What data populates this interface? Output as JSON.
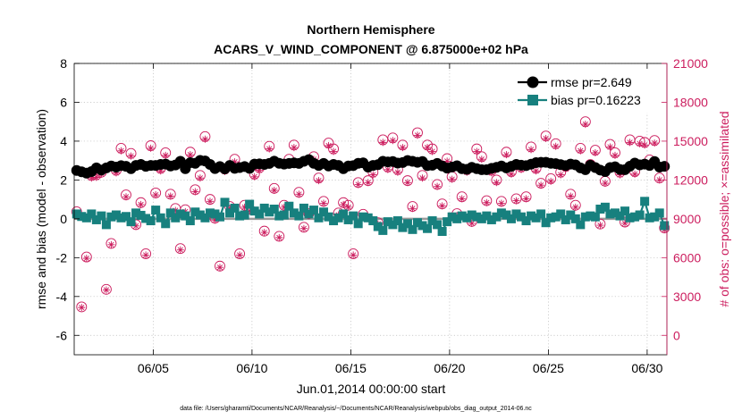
{
  "chart_data": {
    "type": "scatter",
    "title": "Northern Hemisphere",
    "subtitle": "ACARS_V_WIND_COMPONENT @ 6.875000e+02 hPa",
    "xlabel": "Jun.01,2014 00:00:00 start",
    "ylabel": "rmse and bias (model - observation)",
    "y2label": "# of obs: o=possible; ×=assimilated",
    "footnote": "data file: /Users/gharamti/Documents/NCAR/Reanalysis/~/Documents/NCAR/Reanalysis/webpub/obs_diag_output_2014-06.nc",
    "xlim": [
      1.0,
      31.0
    ],
    "ylim": [
      -7,
      8
    ],
    "y2lim": [
      -1500,
      21000
    ],
    "x_ticks": [
      5,
      10,
      15,
      20,
      25,
      30
    ],
    "x_tick_labels": [
      "06/05",
      "06/10",
      "06/15",
      "06/20",
      "06/25",
      "06/30"
    ],
    "y_ticks": [
      -6,
      -4,
      -2,
      0,
      2,
      4,
      6,
      8
    ],
    "y_tick_labels": [
      "-6",
      "-4",
      "-2",
      "0",
      "2",
      "4",
      "6",
      "8"
    ],
    "y2_ticks": [
      0,
      3000,
      6000,
      9000,
      12000,
      15000,
      18000,
      21000
    ],
    "y2_tick_labels": [
      "0",
      "3000",
      "6000",
      "9000",
      "12000",
      "15000",
      "18000",
      "21000"
    ],
    "grid": true,
    "legend_position": "top-right",
    "zero_line": 0,
    "series": [
      {
        "name": "rmse pr=2.649",
        "axis": "left",
        "color": "#000000",
        "marker": "circle",
        "x": [
          1.125,
          1.375,
          1.625,
          1.875,
          2.125,
          2.375,
          2.625,
          2.875,
          3.125,
          3.375,
          3.625,
          3.875,
          4.125,
          4.375,
          4.625,
          4.875,
          5.125,
          5.375,
          5.625,
          5.875,
          6.125,
          6.375,
          6.625,
          6.875,
          7.125,
          7.375,
          7.625,
          7.875,
          8.125,
          8.375,
          8.625,
          8.875,
          9.125,
          9.375,
          9.625,
          9.875,
          10.125,
          10.375,
          10.625,
          10.875,
          11.125,
          11.375,
          11.625,
          11.875,
          12.125,
          12.375,
          12.625,
          12.875,
          13.125,
          13.375,
          13.625,
          13.875,
          14.125,
          14.375,
          14.625,
          14.875,
          15.125,
          15.375,
          15.625,
          15.875,
          16.125,
          16.375,
          16.625,
          16.875,
          17.125,
          17.375,
          17.625,
          17.875,
          18.125,
          18.375,
          18.625,
          18.875,
          19.125,
          19.375,
          19.625,
          19.875,
          20.125,
          20.375,
          20.625,
          20.875,
          21.125,
          21.375,
          21.625,
          21.875,
          22.125,
          22.375,
          22.625,
          22.875,
          23.125,
          23.375,
          23.625,
          23.875,
          24.125,
          24.375,
          24.625,
          24.875,
          25.125,
          25.375,
          25.625,
          25.875,
          26.125,
          26.375,
          26.625,
          26.875,
          27.125,
          27.375,
          27.625,
          27.875,
          28.125,
          28.375,
          28.625,
          28.875,
          29.125,
          29.375,
          29.625,
          29.875,
          30.125,
          30.375,
          30.625,
          30.875
        ],
        "values": [
          2.49,
          2.42,
          2.35,
          2.43,
          2.62,
          2.51,
          2.62,
          2.72,
          2.66,
          2.74,
          2.7,
          2.58,
          2.75,
          2.8,
          2.7,
          2.75,
          2.75,
          2.8,
          2.82,
          2.72,
          2.77,
          2.96,
          2.58,
          2.89,
          2.86,
          3.01,
          2.98,
          2.8,
          2.59,
          2.69,
          2.57,
          2.75,
          2.6,
          2.64,
          2.69,
          2.6,
          2.82,
          2.83,
          2.8,
          2.85,
          2.97,
          2.86,
          2.82,
          2.85,
          2.88,
          2.85,
          2.96,
          3.05,
          2.86,
          2.75,
          2.85,
          2.72,
          2.8,
          2.75,
          2.58,
          2.72,
          2.74,
          2.86,
          2.88,
          2.66,
          2.75,
          2.79,
          2.96,
          2.93,
          2.95,
          2.87,
          2.9,
          3.0,
          2.96,
          2.91,
          2.95,
          2.74,
          2.76,
          2.85,
          2.72,
          2.61,
          2.67,
          2.73,
          2.58,
          2.55,
          2.65,
          2.58,
          2.53,
          2.53,
          2.6,
          2.65,
          2.72,
          2.62,
          2.7,
          2.8,
          2.76,
          2.74,
          2.81,
          2.89,
          2.91,
          2.91,
          2.86,
          2.84,
          2.79,
          2.74,
          2.82,
          2.78,
          2.62,
          2.53,
          2.76,
          2.64,
          2.51,
          2.43,
          2.64,
          2.68,
          2.54,
          2.53,
          2.71,
          2.87,
          2.78,
          2.82,
          2.75,
          2.95,
          2.66,
          2.7
        ]
      },
      {
        "name": "bias pr=0.16223",
        "axis": "left",
        "color": "#17807e",
        "marker": "square",
        "x": [
          1.125,
          1.375,
          1.625,
          1.875,
          2.125,
          2.375,
          2.625,
          2.875,
          3.125,
          3.375,
          3.625,
          3.875,
          4.125,
          4.375,
          4.625,
          4.875,
          5.125,
          5.375,
          5.625,
          5.875,
          6.125,
          6.375,
          6.625,
          6.875,
          7.125,
          7.375,
          7.625,
          7.875,
          8.125,
          8.375,
          8.625,
          8.875,
          9.125,
          9.375,
          9.625,
          9.875,
          10.125,
          10.375,
          10.625,
          10.875,
          11.125,
          11.375,
          11.625,
          11.875,
          12.125,
          12.375,
          12.625,
          12.875,
          13.125,
          13.375,
          13.625,
          13.875,
          14.125,
          14.375,
          14.625,
          14.875,
          15.125,
          15.375,
          15.625,
          15.875,
          16.125,
          16.375,
          16.625,
          16.875,
          17.125,
          17.375,
          17.625,
          17.875,
          18.125,
          18.375,
          18.625,
          18.875,
          19.125,
          19.375,
          19.625,
          19.875,
          20.125,
          20.375,
          20.625,
          20.875,
          21.125,
          21.375,
          21.625,
          21.875,
          22.125,
          22.375,
          22.625,
          22.875,
          23.125,
          23.375,
          23.625,
          23.875,
          24.125,
          24.375,
          24.625,
          24.875,
          25.125,
          25.375,
          25.625,
          25.875,
          26.125,
          26.375,
          26.625,
          26.875,
          27.125,
          27.375,
          27.625,
          27.875,
          28.125,
          28.375,
          28.625,
          28.875,
          29.125,
          29.375,
          29.625,
          29.875,
          30.125,
          30.375,
          30.625,
          30.875
        ],
        "values": [
          0.25,
          0.12,
          0.05,
          0.25,
          -0.05,
          0.15,
          -0.3,
          0.1,
          0.2,
          0.05,
          0.12,
          -0.15,
          0.3,
          0.18,
          0.02,
          -0.1,
          0.45,
          0.05,
          -0.25,
          0.3,
          0.05,
          0.25,
          0.15,
          -0.1,
          0.35,
          0.2,
          0.05,
          0.3,
          0.25,
          0.1,
          0.85,
          0.3,
          0.55,
          0.15,
          0.2,
          0.75,
          0.4,
          0.25,
          0.55,
          0.35,
          0.5,
          0.15,
          0.2,
          0.65,
          0.3,
          0.15,
          0.55,
          0.25,
          0.45,
          0.05,
          0.35,
          0.1,
          -0.1,
          0.05,
          0.25,
          -0.05,
          0.15,
          -0.25,
          0.1,
          0.05,
          -0.1,
          -0.4,
          -0.6,
          -0.15,
          -0.3,
          -0.1,
          -0.45,
          -0.25,
          -0.55,
          -0.2,
          -0.35,
          -0.5,
          -0.1,
          -0.3,
          -0.65,
          -0.15,
          0.1,
          0.0,
          0.15,
          0.05,
          0.2,
          0.1,
          0.0,
          0.15,
          -0.05,
          0.1,
          0.3,
          0.2,
          0.0,
          0.25,
          0.1,
          -0.1,
          0.15,
          0.05,
          0.25,
          -0.2,
          0.05,
          0.1,
          0.25,
          -0.05,
          0.2,
          0.0,
          -0.3,
          0.1,
          0.15,
          0.1,
          0.5,
          0.6,
          0.25,
          0.3,
          0.15,
          0.4,
          0.05,
          0.1,
          0.2,
          0.9,
          0.05,
          0.1,
          0.3,
          -0.35
        ]
      },
      {
        "name": "possible",
        "axis": "right",
        "color": "#cc1d5e",
        "marker": "open-circle",
        "x": [
          1.125,
          1.375,
          1.625,
          1.875,
          2.125,
          2.375,
          2.625,
          2.875,
          3.125,
          3.375,
          3.625,
          3.875,
          4.125,
          4.375,
          4.625,
          4.875,
          5.125,
          5.375,
          5.625,
          5.875,
          6.125,
          6.375,
          6.625,
          6.875,
          7.125,
          7.375,
          7.625,
          7.875,
          8.125,
          8.375,
          8.625,
          8.875,
          9.125,
          9.375,
          9.625,
          9.875,
          10.125,
          10.375,
          10.625,
          10.875,
          11.125,
          11.375,
          11.625,
          11.875,
          12.125,
          12.375,
          12.625,
          12.875,
          13.125,
          13.375,
          13.625,
          13.875,
          14.125,
          14.375,
          14.625,
          14.875,
          15.125,
          15.375,
          15.625,
          15.875,
          16.125,
          16.375,
          16.625,
          16.875,
          17.125,
          17.375,
          17.625,
          17.875,
          18.125,
          18.375,
          18.625,
          18.875,
          19.125,
          19.375,
          19.625,
          19.875,
          20.125,
          20.375,
          20.625,
          20.875,
          21.125,
          21.375,
          21.625,
          21.875,
          22.125,
          22.375,
          22.625,
          22.875,
          23.125,
          23.375,
          23.625,
          23.875,
          24.125,
          24.375,
          24.625,
          24.875,
          25.125,
          25.375,
          25.625,
          25.875,
          26.125,
          26.375,
          26.625,
          26.875,
          27.125,
          27.375,
          27.625,
          27.875,
          28.125,
          28.375,
          28.625,
          28.875,
          29.125,
          29.375,
          29.625,
          29.875,
          30.125,
          30.375,
          30.625,
          30.875
        ],
        "values": [
          9550,
          2200,
          6050,
          12350,
          12400,
          12600,
          3550,
          7100,
          12750,
          14450,
          10850,
          14050,
          8550,
          10250,
          6300,
          14650,
          11000,
          12900,
          14100,
          10900,
          9800,
          6700,
          9700,
          14150,
          11250,
          12350,
          15350,
          10500,
          9050,
          5350,
          12850,
          9950,
          13600,
          6300,
          10050,
          9750,
          12450,
          12950,
          8050,
          14600,
          11350,
          7650,
          10050,
          13600,
          14700,
          11050,
          8350,
          9400,
          13800,
          12150,
          10350,
          14850,
          14400,
          9450,
          10250,
          10050,
          6300,
          11800,
          9350,
          11950,
          12600,
          8700,
          15100,
          13000,
          15250,
          12800,
          14700,
          11950,
          9950,
          15650,
          12350,
          14700,
          14400,
          11650,
          10150,
          13650,
          12250,
          9400,
          10700,
          12800,
          8800,
          14400,
          13800,
          10400,
          12750,
          12000,
          10350,
          14150,
          12650,
          10550,
          13000,
          10700,
          14550,
          12900,
          11750,
          15400,
          12100,
          14800,
          12600,
          13050,
          10900,
          10050,
          14450,
          16500,
          13200,
          14300,
          8600,
          11900,
          14750,
          14100,
          12600,
          8750,
          15100,
          12650,
          15000,
          14900,
          13550,
          15050,
          12150,
          8300
        ]
      },
      {
        "name": "assimilated",
        "axis": "right",
        "color": "#cc1d5e",
        "marker": "star",
        "x": [
          1.125,
          1.375,
          1.625,
          1.875,
          2.125,
          2.375,
          2.625,
          2.875,
          3.125,
          3.375,
          3.625,
          3.875,
          4.125,
          4.375,
          4.625,
          4.875,
          5.125,
          5.375,
          5.625,
          5.875,
          6.125,
          6.375,
          6.625,
          6.875,
          7.125,
          7.375,
          7.625,
          7.875,
          8.125,
          8.375,
          8.625,
          8.875,
          9.125,
          9.375,
          9.625,
          9.875,
          10.125,
          10.375,
          10.625,
          10.875,
          11.125,
          11.375,
          11.625,
          11.875,
          12.125,
          12.375,
          12.625,
          12.875,
          13.125,
          13.375,
          13.625,
          13.875,
          14.125,
          14.375,
          14.625,
          14.875,
          15.125,
          15.375,
          15.625,
          15.875,
          16.125,
          16.375,
          16.625,
          16.875,
          17.125,
          17.375,
          17.625,
          17.875,
          18.125,
          18.375,
          18.625,
          18.875,
          19.125,
          19.375,
          19.625,
          19.875,
          20.125,
          20.375,
          20.625,
          20.875,
          21.125,
          21.375,
          21.625,
          21.875,
          22.125,
          22.375,
          22.625,
          22.875,
          23.125,
          23.375,
          23.625,
          23.875,
          24.125,
          24.375,
          24.625,
          24.875,
          25.125,
          25.375,
          25.625,
          25.875,
          26.125,
          26.375,
          26.625,
          26.875,
          27.125,
          27.375,
          27.625,
          27.875,
          28.125,
          28.375,
          28.625,
          28.875,
          29.125,
          29.375,
          29.625,
          29.875,
          30.125,
          30.375,
          30.625,
          30.875
        ],
        "values": [
          9400,
          2150,
          5950,
          12150,
          12200,
          12450,
          3500,
          7000,
          12550,
          14250,
          10700,
          13850,
          8450,
          10100,
          6200,
          14450,
          10850,
          12700,
          13900,
          10750,
          9650,
          6600,
          9550,
          13950,
          11100,
          12150,
          15150,
          10350,
          8900,
          5250,
          12650,
          9800,
          13400,
          6200,
          9900,
          9600,
          12250,
          12750,
          7950,
          14400,
          11200,
          7550,
          9900,
          13400,
          14500,
          10900,
          8250,
          9250,
          13600,
          11950,
          10200,
          14650,
          14200,
          9300,
          10100,
          9900,
          6200,
          11650,
          9200,
          11800,
          12400,
          8600,
          14900,
          12800,
          15050,
          12600,
          14500,
          11800,
          9800,
          15450,
          12150,
          14500,
          14200,
          11500,
          10000,
          13450,
          12050,
          9250,
          10550,
          12600,
          8650,
          14200,
          13600,
          10250,
          12550,
          11800,
          10200,
          13950,
          12450,
          10400,
          12800,
          10550,
          14350,
          12700,
          11600,
          15200,
          11900,
          14600,
          12400,
          12850,
          10750,
          9900,
          14250,
          16300,
          13000,
          14100,
          8500,
          11750,
          14550,
          13900,
          12400,
          8650,
          14900,
          12450,
          14800,
          14700,
          13350,
          14850,
          12000,
          8150
        ]
      }
    ]
  }
}
